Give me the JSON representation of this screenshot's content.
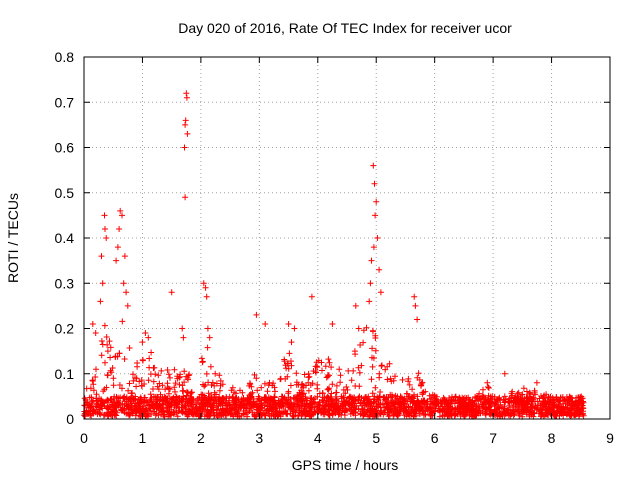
{
  "chart_data": {
    "type": "scatter",
    "title": "Day 020 of 2016, Rate Of TEC Index for receiver ucor",
    "xlabel": "GPS time / hours",
    "ylabel": "ROTI / TECUs",
    "xlim": [
      0,
      9
    ],
    "ylim": [
      0,
      0.8
    ],
    "x_ticks": [
      "0",
      "1",
      "2",
      "3",
      "4",
      "5",
      "6",
      "7",
      "8",
      "9"
    ],
    "y_ticks": [
      "0",
      "0.1",
      "0.2",
      "0.3",
      "0.4",
      "0.5",
      "0.6",
      "0.7",
      "0.8"
    ],
    "grid": true,
    "marker": "+",
    "color": "#ff0000",
    "data_range": [
      0.0,
      8.55
    ],
    "series": [
      {
        "name": "ROTI",
        "notable_points": [
          {
            "x": 0.35,
            "y": 0.45
          },
          {
            "x": 0.36,
            "y": 0.42
          },
          {
            "x": 0.38,
            "y": 0.4
          },
          {
            "x": 0.3,
            "y": 0.36
          },
          {
            "x": 0.32,
            "y": 0.3
          },
          {
            "x": 0.28,
            "y": 0.26
          },
          {
            "x": 0.15,
            "y": 0.21
          },
          {
            "x": 0.2,
            "y": 0.19
          },
          {
            "x": 0.62,
            "y": 0.46
          },
          {
            "x": 0.65,
            "y": 0.45
          },
          {
            "x": 0.6,
            "y": 0.42
          },
          {
            "x": 0.58,
            "y": 0.38
          },
          {
            "x": 0.55,
            "y": 0.35
          },
          {
            "x": 0.7,
            "y": 0.36
          },
          {
            "x": 0.68,
            "y": 0.3
          },
          {
            "x": 0.72,
            "y": 0.28
          },
          {
            "x": 0.75,
            "y": 0.25
          },
          {
            "x": 1.0,
            "y": 0.17
          },
          {
            "x": 1.05,
            "y": 0.19
          },
          {
            "x": 1.1,
            "y": 0.18
          },
          {
            "x": 1.5,
            "y": 0.28
          },
          {
            "x": 1.75,
            "y": 0.72
          },
          {
            "x": 1.76,
            "y": 0.71
          },
          {
            "x": 1.74,
            "y": 0.66
          },
          {
            "x": 1.73,
            "y": 0.65
          },
          {
            "x": 1.77,
            "y": 0.63
          },
          {
            "x": 1.72,
            "y": 0.6
          },
          {
            "x": 1.73,
            "y": 0.49
          },
          {
            "x": 1.68,
            "y": 0.2
          },
          {
            "x": 1.7,
            "y": 0.18
          },
          {
            "x": 2.05,
            "y": 0.3
          },
          {
            "x": 2.08,
            "y": 0.29
          },
          {
            "x": 2.1,
            "y": 0.27
          },
          {
            "x": 2.12,
            "y": 0.2
          },
          {
            "x": 2.15,
            "y": 0.18
          },
          {
            "x": 2.95,
            "y": 0.23
          },
          {
            "x": 3.1,
            "y": 0.21
          },
          {
            "x": 3.5,
            "y": 0.21
          },
          {
            "x": 3.55,
            "y": 0.17
          },
          {
            "x": 3.6,
            "y": 0.2
          },
          {
            "x": 3.9,
            "y": 0.27
          },
          {
            "x": 4.25,
            "y": 0.21
          },
          {
            "x": 4.65,
            "y": 0.25
          },
          {
            "x": 4.7,
            "y": 0.2
          },
          {
            "x": 4.95,
            "y": 0.56
          },
          {
            "x": 4.97,
            "y": 0.52
          },
          {
            "x": 5.0,
            "y": 0.48
          },
          {
            "x": 4.98,
            "y": 0.45
          },
          {
            "x": 5.02,
            "y": 0.4
          },
          {
            "x": 4.96,
            "y": 0.38
          },
          {
            "x": 4.92,
            "y": 0.35
          },
          {
            "x": 5.05,
            "y": 0.33
          },
          {
            "x": 4.9,
            "y": 0.3
          },
          {
            "x": 5.08,
            "y": 0.28
          },
          {
            "x": 4.88,
            "y": 0.26
          },
          {
            "x": 5.65,
            "y": 0.27
          },
          {
            "x": 5.67,
            "y": 0.25
          },
          {
            "x": 5.7,
            "y": 0.22
          },
          {
            "x": 6.9,
            "y": 0.08
          },
          {
            "x": 7.2,
            "y": 0.1
          },
          {
            "x": 7.75,
            "y": 0.08
          }
        ]
      }
    ]
  }
}
